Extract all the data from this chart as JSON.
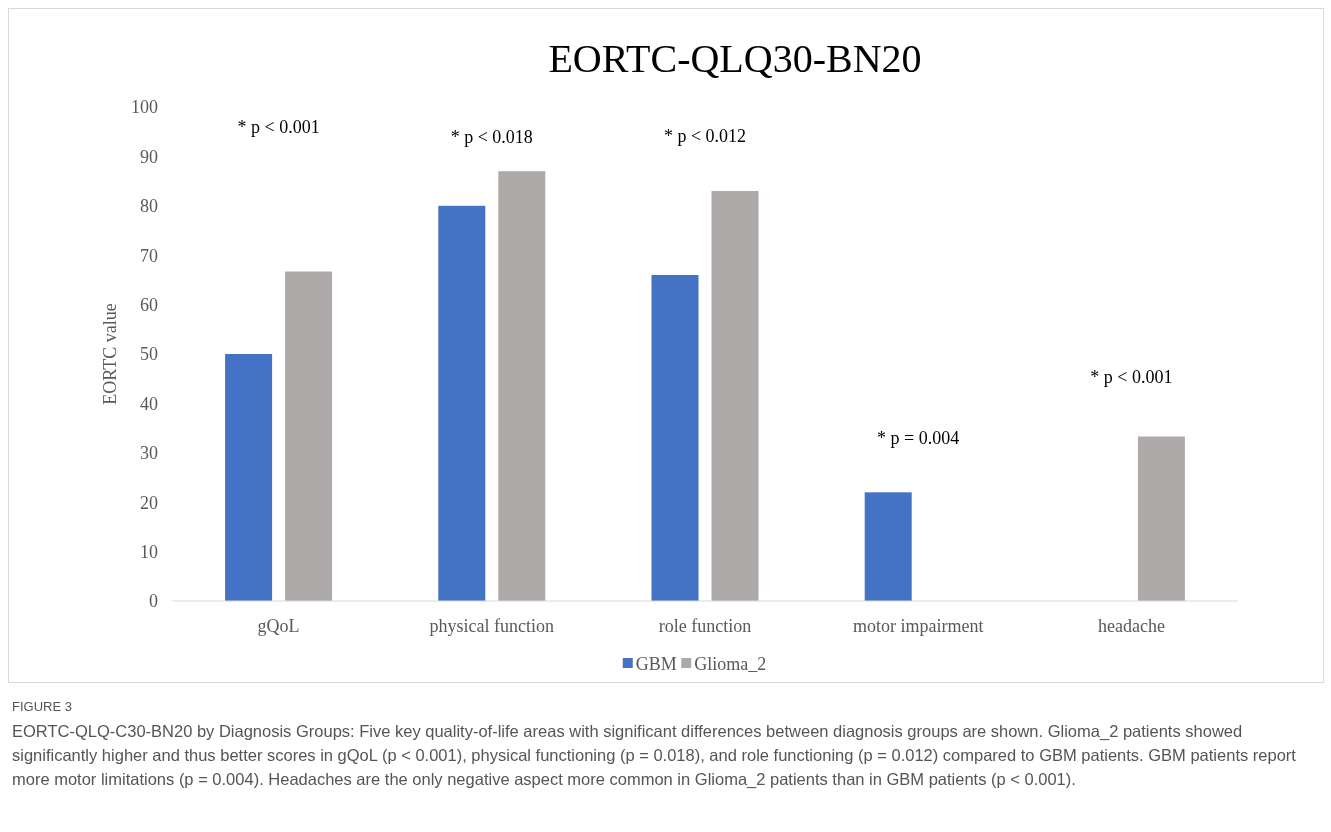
{
  "chart_data": {
    "type": "bar",
    "title": "EORTC-QLQ30-BN20",
    "ylabel": "EORTC value",
    "categories": [
      "gQoL",
      "physical function",
      "role function",
      "motor impairment",
      "headache"
    ],
    "series": [
      {
        "name": "GBM",
        "color": "#4472c4",
        "values": [
          50,
          80,
          66,
          22,
          0
        ]
      },
      {
        "name": "Glioma_2",
        "color": "#aeaaaa",
        "values": [
          66.7,
          87,
          83,
          0,
          33.3
        ]
      }
    ],
    "ylim": [
      0,
      100
    ],
    "yticks": [
      0,
      10,
      20,
      30,
      40,
      50,
      60,
      70,
      80,
      90,
      100
    ],
    "grid": false,
    "legend": "bottom",
    "annotations": [
      "* p < 0.001",
      "* p < 0.018",
      "* p < 0.012",
      "* p = 0.004",
      "* p < 0.001",
      "FIGURE 3",
      "EORTC-QLQ-C30-BN20 by Diagnosis Groups: Five key quality-of-life areas with significant differences between diagnosis groups are shown. Glioma_2 patients showed significantly higher and thus better scores in gQoL (p < 0.001), physical functioning (p = 0.018), and role functioning (p = 0.012) compared to GBM patients. GBM patients report more motor limitations (p = 0.004). Headaches are the only negative aspect more common in Glioma_2 patients than in GBM patients (p < 0.001)."
    ]
  }
}
